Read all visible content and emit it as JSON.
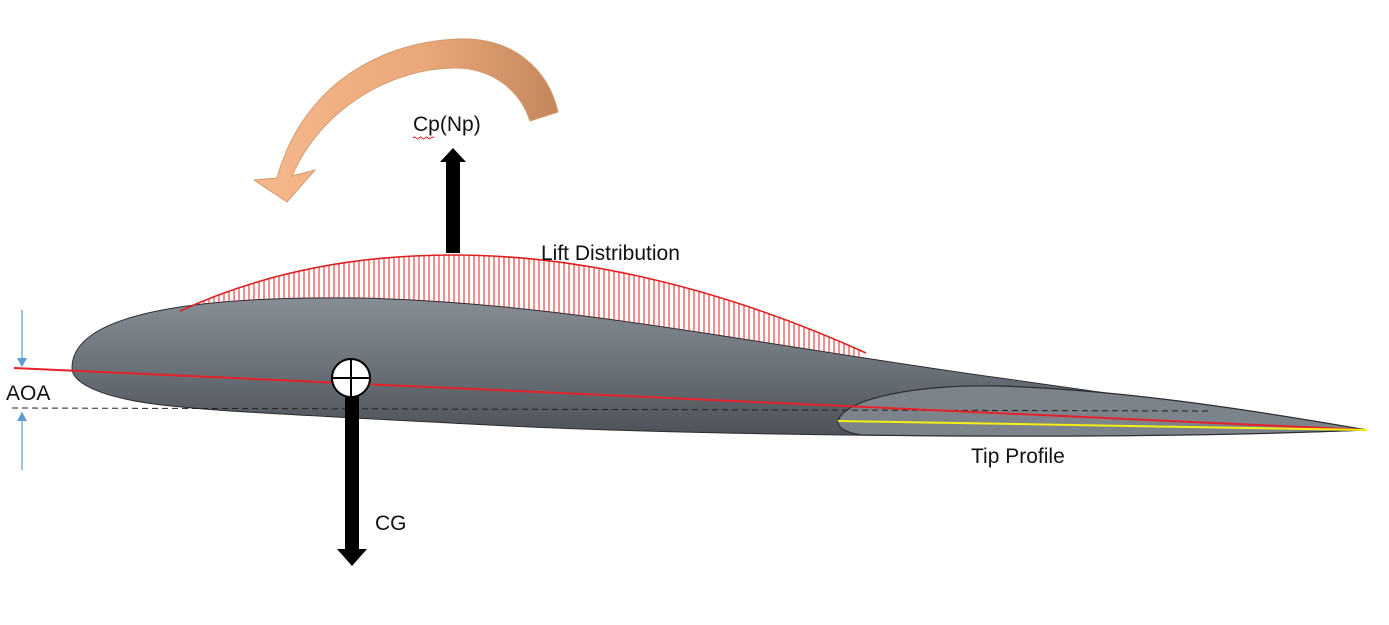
{
  "labels": {
    "moment_label_prefix": "Cp",
    "moment_label_suffix": "(Np)",
    "lift": "Lift Distribution",
    "aoa": "AOA",
    "tip": "Tip Profile",
    "cg": "CG"
  },
  "colors": {
    "airfoil_dark": "#4d5258",
    "airfoil_light": "#878d95",
    "tip_fill": "#7d838b",
    "chord_line": "#e8202a",
    "lift_curve": "#e02020",
    "tip_chord": "#f4ef14",
    "moment_arrow_light": "#f3b387",
    "moment_arrow_dark": "#c58a5e",
    "force_arrows": "#000000",
    "aoa_dimension": "#5b9bd5"
  },
  "icons": [
    "moment-arrow-icon",
    "cg-symbol-icon"
  ]
}
